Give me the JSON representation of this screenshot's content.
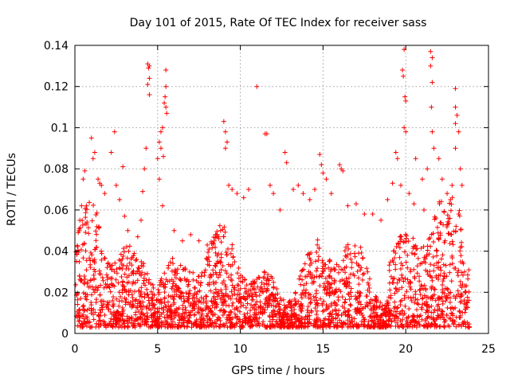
{
  "chart_data": {
    "type": "scatter",
    "title": "Day 101 of 2015, Rate Of TEC Index for receiver sass",
    "xlabel": "GPS time / hours",
    "ylabel": "ROTI / TECUs",
    "xlim": [
      0,
      25
    ],
    "ylim": [
      0,
      0.14
    ],
    "xticks": [
      "0",
      "5",
      "10",
      "15",
      "20",
      "25"
    ],
    "yticks": [
      "0",
      "0.02",
      "0.04",
      "0.06",
      "0.08",
      "0.1",
      "0.12",
      "0.14"
    ],
    "grid": true,
    "marker": "plus",
    "color": "#ff0000",
    "series": [
      {
        "values": [
          [
            0.1,
            0.035
          ],
          [
            0.2,
            0.049
          ],
          [
            0.3,
            0.055
          ],
          [
            0.4,
            0.062
          ],
          [
            0.5,
            0.075
          ],
          [
            0.6,
            0.079
          ],
          [
            0.7,
            0.062
          ],
          [
            1.0,
            0.095
          ],
          [
            1.1,
            0.085
          ],
          [
            1.2,
            0.088
          ],
          [
            1.4,
            0.075
          ],
          [
            1.5,
            0.073
          ],
          [
            1.6,
            0.072
          ],
          [
            1.8,
            0.068
          ],
          [
            2.2,
            0.088
          ],
          [
            2.4,
            0.098
          ],
          [
            2.5,
            0.072
          ],
          [
            2.7,
            0.065
          ],
          [
            2.9,
            0.081
          ],
          [
            3.0,
            0.057
          ],
          [
            3.2,
            0.05
          ],
          [
            3.8,
            0.047
          ],
          [
            4.0,
            0.055
          ],
          [
            4.1,
            0.069
          ],
          [
            4.2,
            0.08
          ],
          [
            4.3,
            0.09
          ],
          [
            4.4,
            0.131
          ],
          [
            4.45,
            0.129
          ],
          [
            4.5,
            0.13
          ],
          [
            4.5,
            0.124
          ],
          [
            4.4,
            0.121
          ],
          [
            4.5,
            0.116
          ],
          [
            5.0,
            0.085
          ],
          [
            5.1,
            0.093
          ],
          [
            5.2,
            0.098
          ],
          [
            5.3,
            0.1
          ],
          [
            5.2,
            0.09
          ],
          [
            5.35,
            0.086
          ],
          [
            5.1,
            0.075
          ],
          [
            5.3,
            0.062
          ],
          [
            5.5,
            0.128
          ],
          [
            5.5,
            0.12
          ],
          [
            5.45,
            0.115
          ],
          [
            5.5,
            0.11
          ],
          [
            5.55,
            0.107
          ],
          [
            5.4,
            0.112
          ],
          [
            6.0,
            0.05
          ],
          [
            6.5,
            0.045
          ],
          [
            7.0,
            0.048
          ],
          [
            7.5,
            0.045
          ],
          [
            8.0,
            0.043
          ],
          [
            8.5,
            0.048
          ],
          [
            9.0,
            0.103
          ],
          [
            9.1,
            0.098
          ],
          [
            9.2,
            0.093
          ],
          [
            9.1,
            0.09
          ],
          [
            9.3,
            0.072
          ],
          [
            9.5,
            0.07
          ],
          [
            9.8,
            0.068
          ],
          [
            10.2,
            0.066
          ],
          [
            10.5,
            0.07
          ],
          [
            11.0,
            0.12
          ],
          [
            11.5,
            0.097
          ],
          [
            11.6,
            0.097
          ],
          [
            11.8,
            0.072
          ],
          [
            12.0,
            0.068
          ],
          [
            12.4,
            0.06
          ],
          [
            12.7,
            0.088
          ],
          [
            12.8,
            0.083
          ],
          [
            13.2,
            0.07
          ],
          [
            13.5,
            0.072
          ],
          [
            13.8,
            0.068
          ],
          [
            14.2,
            0.065
          ],
          [
            14.5,
            0.07
          ],
          [
            14.8,
            0.087
          ],
          [
            14.9,
            0.082
          ],
          [
            15.0,
            0.078
          ],
          [
            15.2,
            0.075
          ],
          [
            15.5,
            0.068
          ],
          [
            16.0,
            0.082
          ],
          [
            16.1,
            0.08
          ],
          [
            16.2,
            0.079
          ],
          [
            16.5,
            0.062
          ],
          [
            17.0,
            0.063
          ],
          [
            17.5,
            0.058
          ],
          [
            18.0,
            0.058
          ],
          [
            18.5,
            0.055
          ],
          [
            18.9,
            0.065
          ],
          [
            19.2,
            0.073
          ],
          [
            19.4,
            0.088
          ],
          [
            19.5,
            0.085
          ],
          [
            19.7,
            0.072
          ],
          [
            19.8,
            0.128
          ],
          [
            19.85,
            0.125
          ],
          [
            19.9,
            0.138
          ],
          [
            19.95,
            0.115
          ],
          [
            20.0,
            0.113
          ],
          [
            19.9,
            0.1
          ],
          [
            20.0,
            0.098
          ],
          [
            20.2,
            0.068
          ],
          [
            20.5,
            0.063
          ],
          [
            20.6,
            0.085
          ],
          [
            21.0,
            0.075
          ],
          [
            21.1,
            0.06
          ],
          [
            21.3,
            0.08
          ],
          [
            21.5,
            0.137
          ],
          [
            21.6,
            0.134
          ],
          [
            21.5,
            0.13
          ],
          [
            21.6,
            0.122
          ],
          [
            21.55,
            0.11
          ],
          [
            21.6,
            0.098
          ],
          [
            21.7,
            0.09
          ],
          [
            22.0,
            0.085
          ],
          [
            22.2,
            0.075
          ],
          [
            22.5,
            0.068
          ],
          [
            22.7,
            0.065
          ],
          [
            22.8,
            0.072
          ],
          [
            23.0,
            0.119
          ],
          [
            23.0,
            0.11
          ],
          [
            23.1,
            0.106
          ],
          [
            23.0,
            0.102
          ],
          [
            23.2,
            0.098
          ],
          [
            23.0,
            0.09
          ],
          [
            23.3,
            0.08
          ],
          [
            23.4,
            0.072
          ]
        ]
      }
    ]
  }
}
